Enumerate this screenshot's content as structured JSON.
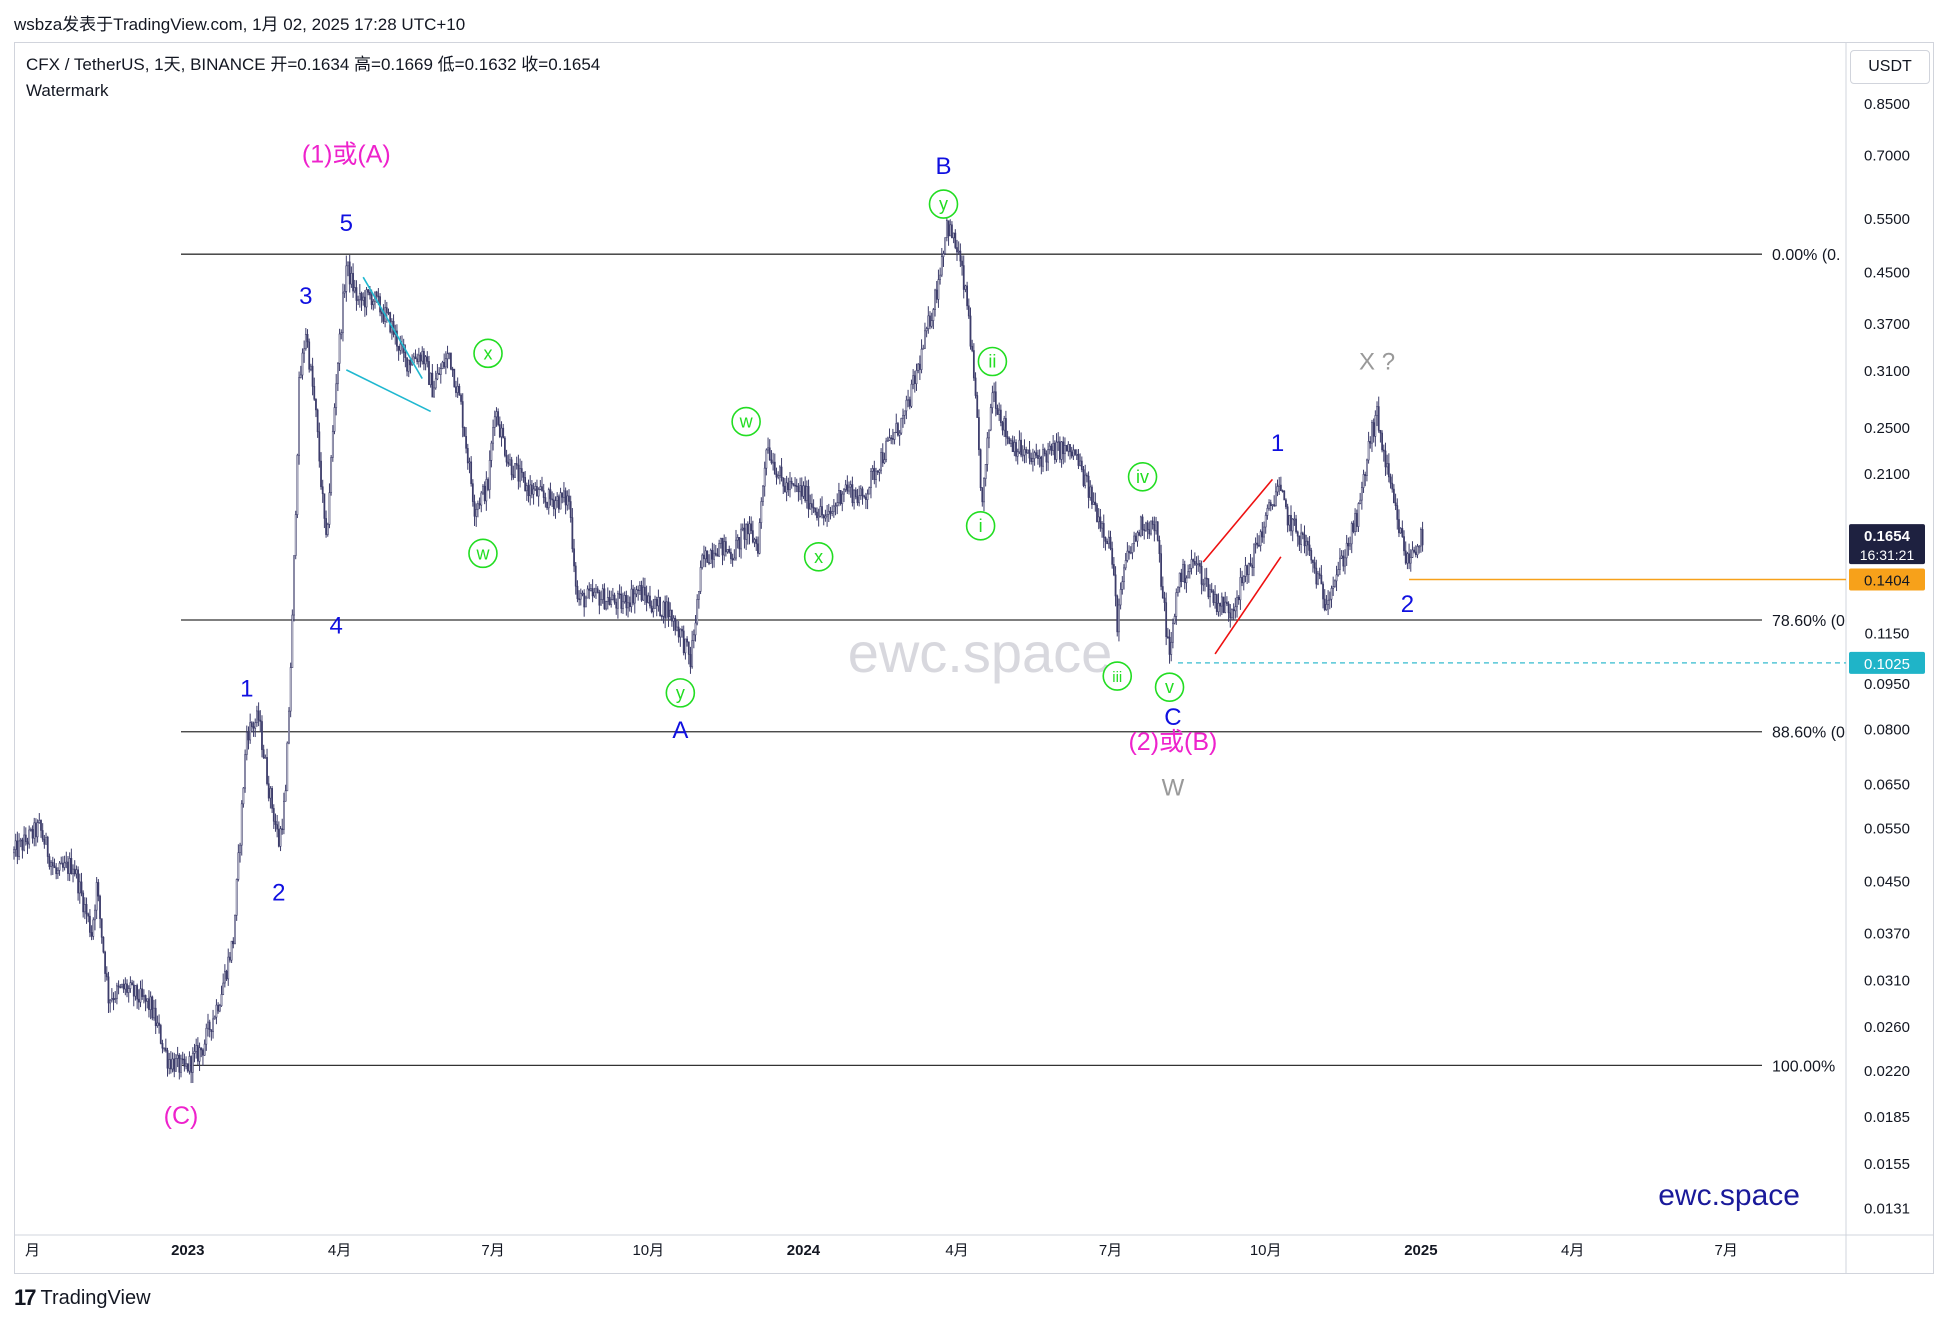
{
  "header": {
    "text": "wsbza发表于TradingView.com, 1月 02, 2025 17:28 UTC+10"
  },
  "legend": {
    "symbol_line": "CFX / TetherUS, 1天, BINANCE  开=0.1634  高=0.1669  低=0.1632  收=0.1654",
    "indicator": "Watermark"
  },
  "currency_button": "USDT",
  "footer": {
    "logo_text": "TradingView",
    "logo_mark": "17"
  },
  "watermark": {
    "center": "ewc.space",
    "corner": "ewc.space"
  },
  "colors": {
    "candle": "#3d3d6b",
    "blue_label": "#1010e0",
    "green_label": "#22dd22",
    "magenta_label": "#ee22cc",
    "gray_label": "#999999",
    "fib_line": "#333333",
    "orange_line": "#f7a11a",
    "cyan_dash": "#56c6d6",
    "red_wedge": "#ee1111",
    "cyan_triangle": "#20b8d0",
    "price_tag_dark": "#1e2140"
  },
  "chart_data": {
    "type": "candlestick",
    "scale": "log",
    "ylim": [
      0.0118,
      1.07
    ],
    "x_axis": {
      "range": [
        "2022-09-20",
        "2025-09-10"
      ],
      "ticks": [
        {
          "date": "2022-10-01",
          "label": "月"
        },
        {
          "date": "2023-01-01",
          "label": "2023"
        },
        {
          "date": "2023-04-01",
          "label": "4月"
        },
        {
          "date": "2023-07-01",
          "label": "7月"
        },
        {
          "date": "2023-10-01",
          "label": "10月"
        },
        {
          "date": "2024-01-01",
          "label": "2024"
        },
        {
          "date": "2024-04-01",
          "label": "4月"
        },
        {
          "date": "2024-07-01",
          "label": "7月"
        },
        {
          "date": "2024-10-01",
          "label": "10月"
        },
        {
          "date": "2025-01-01",
          "label": "2025"
        },
        {
          "date": "2025-04-01",
          "label": "4月"
        },
        {
          "date": "2025-07-01",
          "label": "7月"
        }
      ]
    },
    "y_ticks": [
      "0.8500",
      "0.7000",
      "0.5500",
      "0.4500",
      "0.3700",
      "0.3100",
      "0.2500",
      "0.2100",
      "0.1150",
      "0.0950",
      "0.0800",
      "0.0650",
      "0.0550",
      "0.0450",
      "0.0370",
      "0.0310",
      "0.0260",
      "0.0220",
      "0.0185",
      "0.0155",
      "0.0131"
    ],
    "price_path": [
      [
        "2022-09-20",
        0.05
      ],
      [
        "2022-10-05",
        0.055
      ],
      [
        "2022-10-15",
        0.046
      ],
      [
        "2022-10-25",
        0.048
      ],
      [
        "2022-11-05",
        0.037
      ],
      [
        "2022-11-08",
        0.044
      ],
      [
        "2022-11-15",
        0.029
      ],
      [
        "2022-11-25",
        0.03
      ],
      [
        "2022-12-10",
        0.028
      ],
      [
        "2022-12-20",
        0.023
      ],
      [
        "2022-12-30",
        0.022
      ],
      [
        "2023-01-10",
        0.024
      ],
      [
        "2023-01-20",
        0.029
      ],
      [
        "2023-01-28",
        0.036
      ],
      [
        "2023-02-05",
        0.079
      ],
      [
        "2023-02-12",
        0.083
      ],
      [
        "2023-02-18",
        0.064
      ],
      [
        "2023-02-24",
        0.052
      ],
      [
        "2023-02-28",
        0.062
      ],
      [
        "2023-03-04",
        0.12
      ],
      [
        "2023-03-08",
        0.29
      ],
      [
        "2023-03-12",
        0.36
      ],
      [
        "2023-03-18",
        0.26
      ],
      [
        "2023-03-24",
        0.16
      ],
      [
        "2023-03-30",
        0.3
      ],
      [
        "2023-04-05",
        0.46
      ],
      [
        "2023-04-12",
        0.4
      ],
      [
        "2023-04-20",
        0.41
      ],
      [
        "2023-05-01",
        0.37
      ],
      [
        "2023-05-10",
        0.32
      ],
      [
        "2023-05-20",
        0.33
      ],
      [
        "2023-05-26",
        0.29
      ],
      [
        "2023-06-05",
        0.33
      ],
      [
        "2023-06-12",
        0.27
      ],
      [
        "2023-06-20",
        0.185
      ],
      [
        "2023-06-28",
        0.2
      ],
      [
        "2023-07-02",
        0.27
      ],
      [
        "2023-07-10",
        0.22
      ],
      [
        "2023-07-20",
        0.2
      ],
      [
        "2023-08-01",
        0.19
      ],
      [
        "2023-08-15",
        0.19
      ],
      [
        "2023-08-20",
        0.13
      ],
      [
        "2023-09-01",
        0.132
      ],
      [
        "2023-09-15",
        0.128
      ],
      [
        "2023-09-25",
        0.135
      ],
      [
        "2023-10-05",
        0.127
      ],
      [
        "2023-10-12",
        0.126
      ],
      [
        "2023-10-20",
        0.115
      ],
      [
        "2023-10-26",
        0.103
      ],
      [
        "2023-11-02",
        0.15
      ],
      [
        "2023-11-10",
        0.16
      ],
      [
        "2023-11-20",
        0.155
      ],
      [
        "2023-11-28",
        0.17
      ],
      [
        "2023-12-05",
        0.16
      ],
      [
        "2023-12-10",
        0.235
      ],
      [
        "2023-12-20",
        0.2
      ],
      [
        "2024-01-01",
        0.195
      ],
      [
        "2024-01-15",
        0.175
      ],
      [
        "2024-01-25",
        0.2
      ],
      [
        "2024-02-05",
        0.19
      ],
      [
        "2024-02-15",
        0.22
      ],
      [
        "2024-03-01",
        0.26
      ],
      [
        "2024-03-10",
        0.32
      ],
      [
        "2024-03-20",
        0.42
      ],
      [
        "2024-03-26",
        0.54
      ],
      [
        "2024-04-02",
        0.48
      ],
      [
        "2024-04-08",
        0.38
      ],
      [
        "2024-04-13",
        0.25
      ],
      [
        "2024-04-16",
        0.185
      ],
      [
        "2024-04-22",
        0.29
      ],
      [
        "2024-05-01",
        0.24
      ],
      [
        "2024-05-15",
        0.22
      ],
      [
        "2024-06-01",
        0.23
      ],
      [
        "2024-06-10",
        0.225
      ],
      [
        "2024-06-20",
        0.19
      ],
      [
        "2024-07-01",
        0.16
      ],
      [
        "2024-07-05",
        0.12
      ],
      [
        "2024-07-10",
        0.15
      ],
      [
        "2024-07-20",
        0.175
      ],
      [
        "2024-07-28",
        0.17
      ],
      [
        "2024-08-05",
        0.104
      ],
      [
        "2024-08-10",
        0.14
      ],
      [
        "2024-08-20",
        0.15
      ],
      [
        "2024-09-01",
        0.13
      ],
      [
        "2024-09-10",
        0.125
      ],
      [
        "2024-09-20",
        0.145
      ],
      [
        "2024-10-01",
        0.175
      ],
      [
        "2024-10-08",
        0.2
      ],
      [
        "2024-10-15",
        0.175
      ],
      [
        "2024-10-25",
        0.16
      ],
      [
        "2024-11-05",
        0.13
      ],
      [
        "2024-11-15",
        0.15
      ],
      [
        "2024-11-25",
        0.18
      ],
      [
        "2024-12-02",
        0.24
      ],
      [
        "2024-12-06",
        0.26
      ],
      [
        "2024-12-12",
        0.21
      ],
      [
        "2024-12-18",
        0.175
      ],
      [
        "2024-12-24",
        0.15
      ],
      [
        "2024-12-28",
        0.158
      ],
      [
        "2025-01-02",
        0.1654
      ]
    ],
    "fib_levels": [
      {
        "label": "0.00% (0.",
        "price": 0.48
      },
      {
        "label": "78.60% (0",
        "price": 0.1205
      },
      {
        "label": "88.60% (0",
        "price": 0.079
      },
      {
        "label": "100.00%",
        "price": 0.0224
      }
    ],
    "price_tags": [
      {
        "value": "0.1654",
        "sub": "16:31:21",
        "price": 0.1654,
        "style": "dark"
      },
      {
        "value": "0.1404",
        "price": 0.1404,
        "style": "orange"
      },
      {
        "value": "0.1025",
        "price": 0.1025,
        "style": "cyan"
      }
    ],
    "horizontal_lines": [
      {
        "from": "2024-12-25",
        "price": 0.1404,
        "style": "orange"
      },
      {
        "from": "2024-08-10",
        "price": 0.1025,
        "style": "cyan-dashed"
      }
    ],
    "wave_labels": [
      {
        "text": "(1)或(A)",
        "date": "2023-04-05",
        "price": 0.7,
        "style": "magenta"
      },
      {
        "text": "5",
        "date": "2023-04-05",
        "price": 0.54,
        "style": "blue"
      },
      {
        "text": "3",
        "date": "2023-03-12",
        "price": 0.41,
        "style": "blue"
      },
      {
        "text": "4",
        "date": "2023-03-30",
        "price": 0.118,
        "style": "blue"
      },
      {
        "text": "1",
        "date": "2023-02-05",
        "price": 0.093,
        "style": "blue"
      },
      {
        "text": "2",
        "date": "2023-02-24",
        "price": 0.043,
        "style": "blue"
      },
      {
        "text": "(C)",
        "date": "2022-12-28",
        "price": 0.0185,
        "style": "magenta"
      },
      {
        "text": "x",
        "date": "2023-06-28",
        "price": 0.33,
        "style": "green"
      },
      {
        "text": "w",
        "date": "2023-06-25",
        "price": 0.155,
        "style": "green"
      },
      {
        "text": "y",
        "date": "2023-10-20",
        "price": 0.0915,
        "style": "green"
      },
      {
        "text": "A",
        "date": "2023-10-20",
        "price": 0.0795,
        "style": "blue"
      },
      {
        "text": "w",
        "date": "2023-11-28",
        "price": 0.255,
        "style": "green"
      },
      {
        "text": "x",
        "date": "2024-01-10",
        "price": 0.153,
        "style": "green"
      },
      {
        "text": "B",
        "date": "2024-03-24",
        "price": 0.67,
        "style": "blue"
      },
      {
        "text": "y",
        "date": "2024-03-24",
        "price": 0.58,
        "style": "green"
      },
      {
        "text": "ii",
        "date": "2024-04-22",
        "price": 0.32,
        "style": "green"
      },
      {
        "text": "i",
        "date": "2024-04-15",
        "price": 0.172,
        "style": "green"
      },
      {
        "text": "iv",
        "date": "2024-07-20",
        "price": 0.207,
        "style": "green"
      },
      {
        "text": "iii",
        "date": "2024-07-05",
        "price": 0.0975,
        "style": "green"
      },
      {
        "text": "v",
        "date": "2024-08-05",
        "price": 0.0935,
        "style": "green"
      },
      {
        "text": "C",
        "date": "2024-08-07",
        "price": 0.0835,
        "style": "blue"
      },
      {
        "text": "(2)或(B)",
        "date": "2024-08-07",
        "price": 0.076,
        "style": "magenta"
      },
      {
        "text": "W",
        "date": "2024-08-07",
        "price": 0.064,
        "style": "gray"
      },
      {
        "text": "1",
        "date": "2024-10-08",
        "price": 0.235,
        "style": "blue"
      },
      {
        "text": "X ?",
        "date": "2024-12-06",
        "price": 0.32,
        "style": "gray"
      },
      {
        "text": "2",
        "date": "2024-12-24",
        "price": 0.128,
        "style": "blue"
      }
    ],
    "trendlines": [
      {
        "style": "cyan",
        "points": [
          [
            "2023-04-15",
            0.44
          ],
          [
            "2023-05-20",
            0.3
          ]
        ]
      },
      {
        "style": "cyan",
        "points": [
          [
            "2023-04-05",
            0.31
          ],
          [
            "2023-05-25",
            0.265
          ]
        ]
      },
      {
        "style": "red",
        "points": [
          [
            "2024-08-25",
            0.15
          ],
          [
            "2024-10-05",
            0.205
          ]
        ]
      },
      {
        "style": "red",
        "points": [
          [
            "2024-09-01",
            0.106
          ],
          [
            "2024-10-10",
            0.153
          ]
        ]
      }
    ]
  }
}
